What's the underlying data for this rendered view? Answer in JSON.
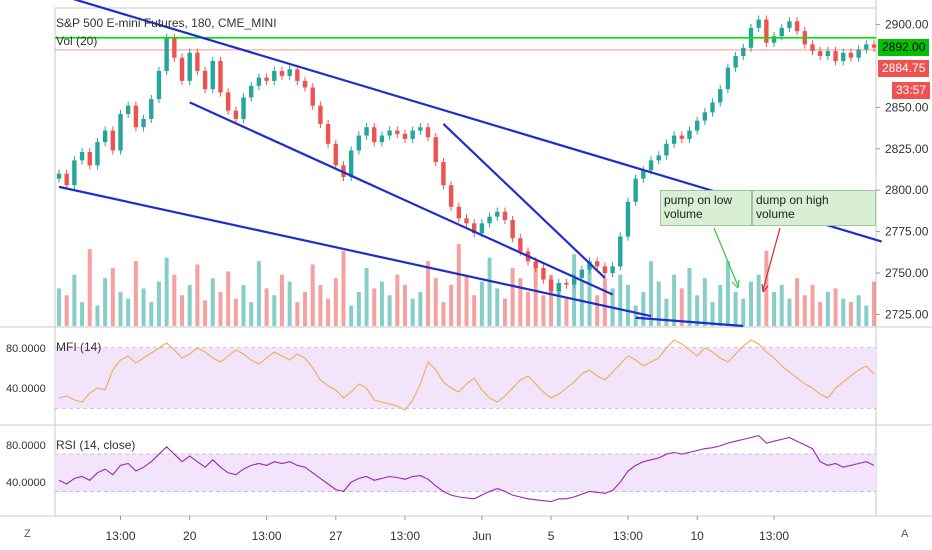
{
  "symbol_line": "S&P 500 E-mini Futures, 180, CME_MINI",
  "volume_label": "Vol (20)",
  "mfi_label": "MFI (14)",
  "rsi_label": "RSI (14, close)",
  "price_badges": {
    "current": "2892.00",
    "last": "2884.75",
    "countdown": "33:57"
  },
  "buttons": {
    "log_scale": "Z",
    "auto_scale": "A"
  },
  "annotations": [
    {
      "text": "pump on low\nvolume"
    },
    {
      "text": "dump on high\nvolume"
    }
  ],
  "colors": {
    "up": "#26a69a",
    "down": "#ef5350",
    "trendline": "#1e2ecd",
    "mfi_line": "#f5a953",
    "rsi_line": "#9c27b0",
    "green_line": "#00e600",
    "band_fill": "#f1e4fb"
  },
  "chart_data": [
    {
      "type": "candlestick",
      "title": "S&P 500 E-mini Futures, 180, CME_MINI",
      "x_ticks": [
        "13:00",
        "20",
        "13:00",
        "27",
        "13:00",
        "Jun",
        "5",
        "13:00",
        "10",
        "13:00"
      ],
      "y_ticks": [
        2725,
        2750,
        2775,
        2800,
        2825,
        2850,
        2900
      ],
      "ylim": [
        2718,
        2910
      ],
      "close_series": [
        2810,
        2803,
        2818,
        2823,
        2815,
        2829,
        2836,
        2824,
        2846,
        2851,
        2838,
        2843,
        2855,
        2872,
        2892,
        2880,
        2866,
        2883,
        2872,
        2861,
        2878,
        2859,
        2848,
        2843,
        2856,
        2863,
        2868,
        2866,
        2872,
        2869,
        2873,
        2866,
        2862,
        2851,
        2840,
        2828,
        2815,
        2808,
        2824,
        2833,
        2838,
        2829,
        2833,
        2836,
        2834,
        2831,
        2836,
        2838,
        2832,
        2817,
        2803,
        2790,
        2783,
        2780,
        2774,
        2780,
        2784,
        2787,
        2782,
        2771,
        2763,
        2757,
        2753,
        2746,
        2739,
        2744,
        2743,
        2747,
        2752,
        2757,
        2754,
        2750,
        2754,
        2772,
        2793,
        2807,
        2812,
        2818,
        2821,
        2828,
        2833,
        2831,
        2836,
        2842,
        2847,
        2853,
        2861,
        2874,
        2881,
        2886,
        2898,
        2903,
        2889,
        2893,
        2898,
        2902,
        2896,
        2888,
        2884,
        2881,
        2884,
        2878,
        2883,
        2880,
        2885,
        2888,
        2886
      ],
      "horizontal_lines": [
        {
          "price": 2892,
          "color": "#00e600"
        },
        {
          "price": 2884.75,
          "color": "#ef5350"
        }
      ],
      "trendlines": [
        {
          "from": [
            0,
            2918
          ],
          "to": [
            107,
            2769
          ]
        },
        {
          "from": [
            0,
            2802
          ],
          "to": [
            77,
            2724
          ]
        },
        {
          "from": [
            17,
            2853
          ],
          "to": [
            72,
            2737
          ]
        },
        {
          "from": [
            50,
            2840
          ],
          "to": [
            71,
            2747
          ]
        },
        {
          "from": [
            75,
            2723
          ],
          "to": [
            89,
            2718
          ]
        }
      ]
    },
    {
      "type": "bar",
      "title": "Vol (20)",
      "values": [
        22,
        18,
        30,
        14,
        45,
        12,
        28,
        34,
        20,
        16,
        38,
        22,
        14,
        26,
        40,
        30,
        18,
        24,
        36,
        15,
        28,
        20,
        32,
        16,
        24,
        14,
        38,
        22,
        18,
        30,
        26,
        14,
        20,
        36,
        24,
        16,
        28,
        44,
        12,
        20,
        34,
        22,
        26,
        18,
        30,
        24,
        16,
        20,
        38,
        28,
        14,
        24,
        48,
        30,
        18,
        26,
        40,
        22,
        16,
        34,
        28,
        20,
        36,
        18,
        30,
        24,
        16,
        42,
        26,
        34,
        18,
        28,
        22,
        30,
        24,
        12,
        20,
        38,
        26,
        16,
        30,
        22,
        34,
        18,
        28,
        14,
        24,
        38,
        20,
        16,
        26,
        30,
        44,
        20,
        24,
        16,
        28,
        18,
        24,
        14,
        20,
        22,
        16,
        14,
        18,
        12,
        26
      ]
    },
    {
      "type": "line",
      "title": "MFI (14)",
      "y_ticks": [
        40,
        80
      ],
      "band": [
        20,
        80
      ],
      "values": [
        30,
        32,
        28,
        26,
        35,
        40,
        38,
        58,
        68,
        72,
        65,
        70,
        75,
        80,
        85,
        78,
        70,
        74,
        80,
        76,
        70,
        66,
        72,
        78,
        74,
        68,
        64,
        70,
        76,
        72,
        68,
        74,
        70,
        60,
        48,
        42,
        38,
        30,
        36,
        44,
        40,
        28,
        26,
        24,
        22,
        18,
        28,
        44,
        66,
        58,
        46,
        40,
        36,
        44,
        50,
        38,
        30,
        26,
        32,
        40,
        48,
        52,
        44,
        36,
        30,
        34,
        40,
        46,
        54,
        58,
        52,
        48,
        56,
        64,
        72,
        68,
        62,
        66,
        70,
        80,
        88,
        84,
        78,
        72,
        80,
        76,
        70,
        66,
        74,
        82,
        88,
        84,
        76,
        70,
        62,
        56,
        50,
        44,
        40,
        34,
        30,
        40,
        46,
        52,
        58,
        62,
        54
      ]
    },
    {
      "type": "line",
      "title": "RSI (14, close)",
      "y_ticks": [
        40,
        80
      ],
      "band": [
        30,
        70
      ],
      "values": [
        42,
        38,
        44,
        46,
        42,
        50,
        54,
        48,
        58,
        60,
        52,
        56,
        62,
        70,
        78,
        70,
        62,
        68,
        62,
        56,
        64,
        56,
        50,
        48,
        54,
        58,
        60,
        58,
        62,
        60,
        62,
        58,
        56,
        50,
        44,
        38,
        32,
        30,
        40,
        44,
        46,
        42,
        44,
        46,
        45,
        43,
        46,
        47,
        43,
        36,
        30,
        26,
        24,
        23,
        22,
        26,
        30,
        33,
        30,
        26,
        24,
        22,
        21,
        20,
        19,
        22,
        22,
        24,
        27,
        30,
        29,
        28,
        31,
        40,
        52,
        58,
        62,
        64,
        66,
        70,
        72,
        70,
        72,
        74,
        76,
        77,
        79,
        82,
        84,
        86,
        88,
        90,
        82,
        84,
        86,
        88,
        84,
        80,
        76,
        62,
        58,
        60,
        56,
        58,
        60,
        62,
        58
      ]
    }
  ]
}
